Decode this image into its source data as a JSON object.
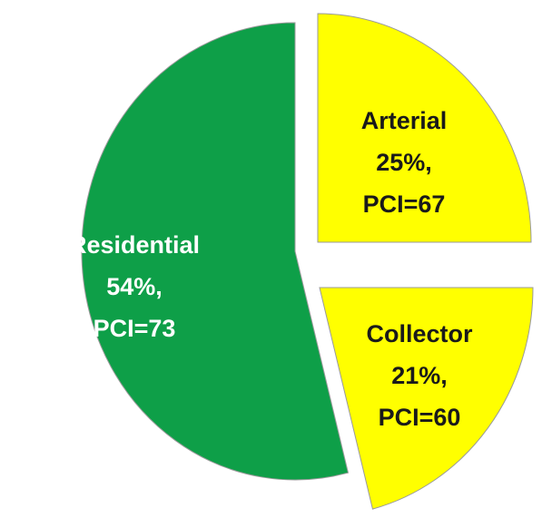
{
  "chart_data": {
    "type": "pie",
    "categories": [
      "Arterial",
      "Collector",
      "Residential"
    ],
    "values": [
      25,
      21,
      54
    ],
    "value_labels": [
      "25%,",
      "21%,",
      "54%,"
    ],
    "pci": [
      67,
      60,
      73
    ],
    "pci_labels": [
      "PCI=67",
      "PCI=60",
      "PCI=73"
    ],
    "colors": [
      "#ffff00",
      "#ffff00",
      "#0e9f48"
    ],
    "label_colors": [
      "#1a1a1a",
      "#1a1a1a",
      "#ffffff"
    ],
    "start_angle": 0,
    "exploded": true
  }
}
